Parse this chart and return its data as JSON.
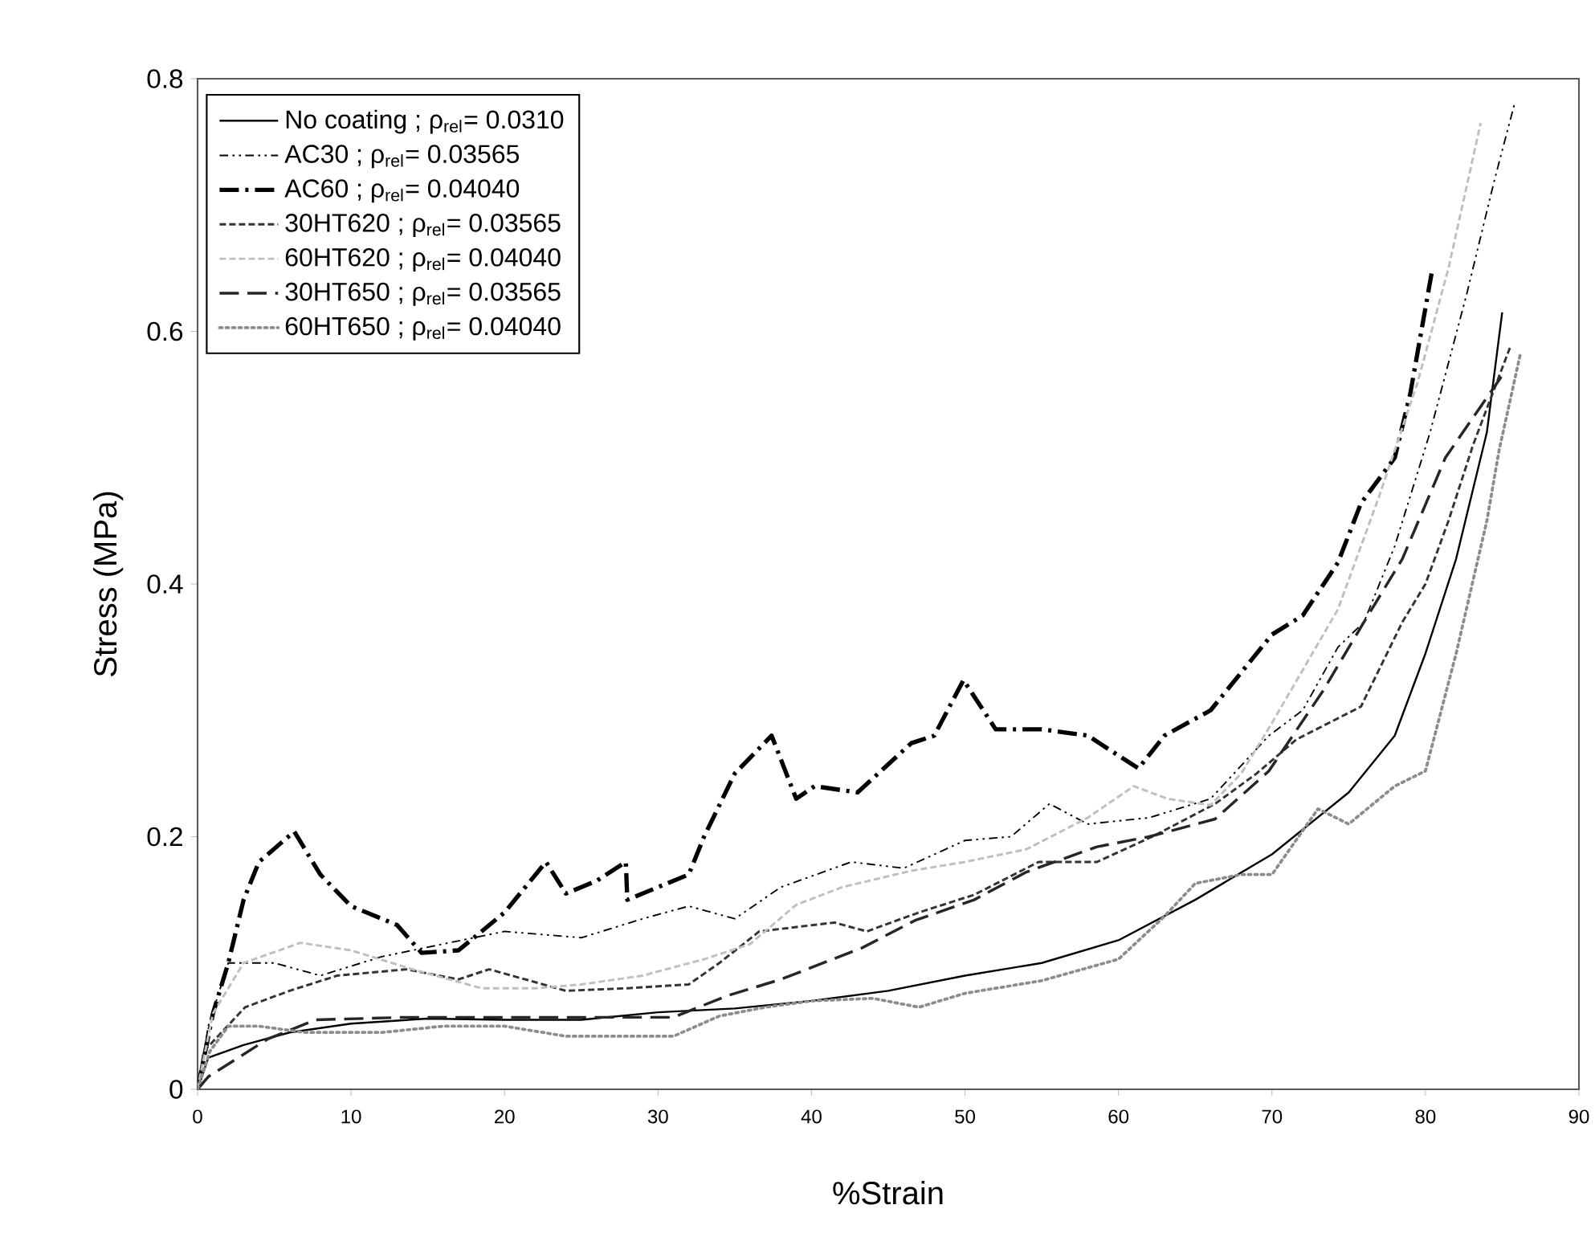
{
  "chart_data": {
    "type": "line",
    "xlabel": "%Strain",
    "ylabel": "Stress (MPa)",
    "xlim": [
      0,
      90
    ],
    "xticks": [
      0,
      10,
      20,
      30,
      40,
      50,
      60,
      70,
      80,
      90
    ],
    "ylim": [
      0,
      0.8
    ],
    "yticks": [
      0,
      0.2,
      0.4,
      0.6,
      0.8
    ],
    "grid": false,
    "legend": "top left",
    "marker": "none",
    "series": [
      {
        "name": "No coating ; ρ$_{rel}$= 0.0310",
        "color": "#000000",
        "line_style": "solid",
        "x": [
          0,
          0.7,
          3,
          6,
          10,
          15,
          20,
          25,
          30,
          35,
          40,
          45,
          50,
          55,
          60,
          65,
          70,
          75,
          78,
          80,
          82,
          84,
          85
        ],
        "values": [
          0,
          0.025,
          0.035,
          0.045,
          0.052,
          0.056,
          0.055,
          0.055,
          0.061,
          0.064,
          0.07,
          0.078,
          0.09,
          0.1,
          0.118,
          0.15,
          0.186,
          0.235,
          0.28,
          0.345,
          0.42,
          0.52,
          0.615
        ]
      },
      {
        "name": "AC30 ; ρ$_{rel}$= 0.03565",
        "color": "#000000",
        "line_style": "dashdotdot",
        "x": [
          0,
          0.7,
          2,
          5,
          8,
          12,
          16,
          20,
          25,
          29,
          32,
          35,
          38,
          42.6,
          46,
          50,
          53,
          55.5,
          58,
          62,
          66,
          69.8,
          72,
          74.3,
          76,
          78,
          80.3,
          82.7,
          84.5,
          85.8
        ],
        "values": [
          0,
          0.05,
          0.1,
          0.1,
          0.09,
          0.105,
          0.115,
          0.125,
          0.12,
          0.135,
          0.145,
          0.135,
          0.16,
          0.18,
          0.175,
          0.197,
          0.2,
          0.226,
          0.21,
          0.215,
          0.23,
          0.28,
          0.3,
          0.35,
          0.37,
          0.43,
          0.52,
          0.63,
          0.72,
          0.78
        ]
      },
      {
        "name": "AC60 ; ρ$_{rel}$= 0.04040",
        "color": "#000000",
        "line_style": "dashdot",
        "x": [
          0,
          1,
          2,
          3,
          4,
          6.3,
          8,
          10,
          13,
          14.6,
          17,
          20,
          22.7,
          24,
          26,
          27.9,
          28,
          30,
          32,
          33,
          35,
          37.4,
          39,
          40.2,
          43,
          46.5,
          48,
          49.9,
          52,
          55,
          58,
          61.3,
          63,
          66,
          68,
          70,
          72,
          74.3,
          75.8,
          78,
          79,
          80.4
        ],
        "values": [
          0,
          0.06,
          0.1,
          0.15,
          0.18,
          0.204,
          0.17,
          0.145,
          0.13,
          0.108,
          0.11,
          0.14,
          0.18,
          0.155,
          0.165,
          0.18,
          0.15,
          0.16,
          0.17,
          0.2,
          0.25,
          0.28,
          0.23,
          0.24,
          0.235,
          0.274,
          0.28,
          0.324,
          0.285,
          0.285,
          0.28,
          0.254,
          0.28,
          0.3,
          0.33,
          0.36,
          0.375,
          0.417,
          0.464,
          0.5,
          0.55,
          0.646
        ]
      },
      {
        "name": "30HT620 ; ρ$_{rel}$= 0.03565",
        "color": "#333333",
        "line_style": "dashed",
        "x": [
          0,
          0.4,
          3.1,
          6,
          9.1,
          13.6,
          17,
          19,
          24,
          28,
          32,
          34,
          36.6,
          41.5,
          43.6,
          47,
          50.6,
          54.8,
          58.6,
          62.2,
          66.3,
          69,
          71.6,
          75.8,
          78.5,
          80,
          81.5,
          83.1,
          85.5
        ],
        "values": [
          0,
          0.03,
          0.065,
          0.078,
          0.09,
          0.095,
          0.087,
          0.095,
          0.078,
          0.08,
          0.083,
          0.1,
          0.125,
          0.132,
          0.125,
          0.14,
          0.154,
          0.18,
          0.18,
          0.2,
          0.226,
          0.25,
          0.277,
          0.303,
          0.37,
          0.4,
          0.45,
          0.51,
          0.587
        ]
      },
      {
        "name": "60HT620 ; ρ$_{rel}$= 0.04040",
        "color": "#bfbfbf",
        "line_style": "dashed",
        "x": [
          0,
          1,
          3,
          6.7,
          10,
          14,
          18.5,
          22,
          25,
          29,
          33,
          36,
          39,
          42,
          46.5,
          50,
          54,
          58,
          61,
          63.2,
          66,
          68,
          70,
          74.3,
          77,
          79.5,
          81.5,
          83.6
        ],
        "values": [
          0,
          0.06,
          0.1,
          0.116,
          0.11,
          0.095,
          0.08,
          0.08,
          0.083,
          0.09,
          0.103,
          0.115,
          0.146,
          0.16,
          0.173,
          0.18,
          0.19,
          0.215,
          0.24,
          0.23,
          0.225,
          0.25,
          0.29,
          0.38,
          0.47,
          0.56,
          0.65,
          0.765
        ]
      },
      {
        "name": "30HT650 ; ρ$_{rel}$= 0.03565",
        "color": "#262626",
        "line_style": "longdash",
        "x": [
          0,
          0.7,
          4.6,
          7.7,
          13.6,
          20.6,
          31,
          34.5,
          38,
          43.3,
          46.8,
          50.6,
          54,
          58.6,
          62,
          66.3,
          69.8,
          73.3,
          76,
          78.5,
          81.3,
          83,
          85
        ],
        "values": [
          0,
          0.01,
          0.04,
          0.055,
          0.057,
          0.057,
          0.057,
          0.074,
          0.087,
          0.112,
          0.134,
          0.15,
          0.172,
          0.192,
          0.2,
          0.214,
          0.252,
          0.315,
          0.37,
          0.42,
          0.5,
          0.53,
          0.565
        ]
      },
      {
        "name": "60HT650 ; ρ$_{rel}$= 0.04040",
        "color": "#8c8c8c",
        "line_style": "dotted",
        "x": [
          0,
          0.8,
          2,
          4,
          7,
          12,
          16,
          20,
          24,
          31,
          34,
          37,
          40,
          44,
          47,
          50,
          55,
          60,
          63,
          65,
          68,
          70,
          73,
          75,
          78,
          80,
          82,
          84,
          84.8,
          86.2
        ],
        "values": [
          0,
          0.03,
          0.05,
          0.05,
          0.045,
          0.045,
          0.05,
          0.05,
          0.042,
          0.042,
          0.058,
          0.065,
          0.07,
          0.072,
          0.065,
          0.076,
          0.086,
          0.103,
          0.137,
          0.163,
          0.17,
          0.17,
          0.222,
          0.21,
          0.24,
          0.252,
          0.345,
          0.45,
          0.506,
          0.583
        ]
      }
    ]
  }
}
